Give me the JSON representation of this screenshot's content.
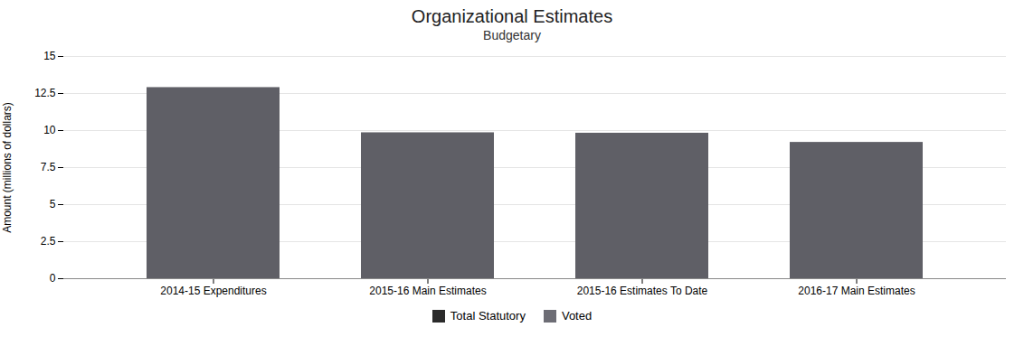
{
  "chart_data": {
    "type": "bar",
    "title": "Organizational Estimates",
    "subtitle": "Budgetary",
    "categories": [
      "2014-15 Expenditures",
      "2015-16 Main Estimates",
      "2015-16 Estimates To Date",
      "2016-17 Main Estimates"
    ],
    "values": [
      12.9,
      9.85,
      9.82,
      9.2
    ],
    "color": "#5f5f66",
    "ylabel": "Amount (millions of dollars)",
    "ylim": [
      0,
      15
    ],
    "yticks": [
      0,
      2.5,
      5,
      7.5,
      10,
      12.5,
      15
    ],
    "grid": true,
    "legend": "bottom",
    "legend_labels": [
      "Total Statutory",
      "Voted"
    ],
    "legend_colors": [
      "#2b2b2b",
      "#6d6d75"
    ]
  }
}
